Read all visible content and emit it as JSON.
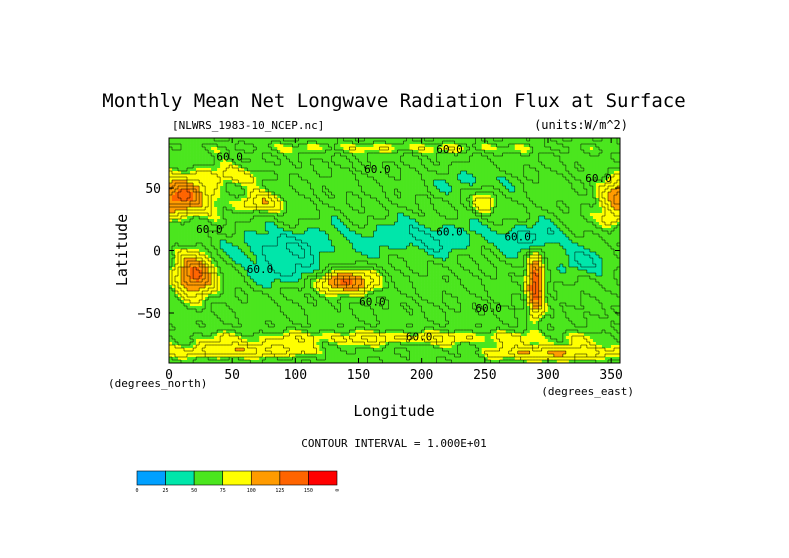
{
  "chart_data": {
    "type": "heatmap",
    "title": "Monthly Mean Net Longwave Radiation Flux at Surface",
    "file_label": "[NLWRS_1983-10_NCEP.nc]",
    "units_label": "(units:W/m^2)",
    "xlabel": "Longitude",
    "ylabel": "Latitude",
    "x_unit_label": "(degrees_east)",
    "y_unit_label": "(degrees_north)",
    "xlim": [
      0,
      357
    ],
    "ylim": [
      -90,
      90
    ],
    "x_ticks": [
      0,
      50,
      100,
      150,
      200,
      250,
      300,
      350
    ],
    "y_ticks": [
      -50,
      0,
      50
    ],
    "contour_interval_text": "CONTOUR INTERVAL = 1.000E+01",
    "contour_labels": [
      {
        "text": "60.0",
        "lon": 48,
        "lat": 72
      },
      {
        "text": "60.0",
        "lon": 165,
        "lat": 62
      },
      {
        "text": "60.0",
        "lon": 222,
        "lat": 78
      },
      {
        "text": "60.0",
        "lon": 340,
        "lat": 55
      },
      {
        "text": "60.0",
        "lon": 32,
        "lat": 14
      },
      {
        "text": "60.0",
        "lon": 222,
        "lat": 12
      },
      {
        "text": "60.0",
        "lon": 276,
        "lat": 8
      },
      {
        "text": "60.0",
        "lon": 72,
        "lat": -18
      },
      {
        "text": "60.0",
        "lon": 161,
        "lat": -44
      },
      {
        "text": "60.0",
        "lon": 253,
        "lat": -49
      },
      {
        "text": "60.0",
        "lon": 198,
        "lat": -72
      }
    ],
    "colorbar": {
      "bins": [
        {
          "label": "0",
          "color": "#00a0ff"
        },
        {
          "label": "25",
          "color": "#00e6aa"
        },
        {
          "label": "50",
          "color": "#4be61e"
        },
        {
          "label": "75",
          "color": "#ffff00"
        },
        {
          "label": "100",
          "color": "#ff9b00"
        },
        {
          "label": "125",
          "color": "#ff6400"
        },
        {
          "label": "150",
          "color": "#ff0000"
        }
      ],
      "end_label": "∞"
    },
    "field_anomalies": [
      {
        "lon": 10,
        "lat": 45,
        "rlon": 32,
        "rlat": 20,
        "amp": 30
      },
      {
        "lon": 8,
        "lat": 42,
        "rlon": 20,
        "rlat": 12,
        "amp": 40
      },
      {
        "lon": 20,
        "lat": -20,
        "rlon": 15,
        "rlat": 16,
        "amp": 75
      },
      {
        "lon": 138,
        "lat": -25,
        "rlon": 22,
        "rlat": 9,
        "amp": 70
      },
      {
        "lon": 290,
        "lat": -27,
        "rlon": 6,
        "rlat": 22,
        "amp": 85
      },
      {
        "lon": 75,
        "lat": 38,
        "rlon": 18,
        "rlat": 8,
        "amp": 35
      },
      {
        "lon": 250,
        "lat": 38,
        "rlon": 10,
        "rlat": 10,
        "amp": 28
      },
      {
        "lon": 350,
        "lat": 25,
        "rlon": 8,
        "rlat": 8,
        "amp": 22
      },
      {
        "lon": 55,
        "lat": 60,
        "rlon": 25,
        "rlat": 8,
        "amp": 20
      },
      {
        "lon": 90,
        "lat": 0,
        "rlon": 40,
        "rlat": 18,
        "amp": -28
      },
      {
        "lon": 200,
        "lat": 10,
        "rlon": 60,
        "rlat": 15,
        "amp": -22
      },
      {
        "lon": 290,
        "lat": 10,
        "rlon": 25,
        "rlat": 12,
        "amp": -25
      },
      {
        "lon": 330,
        "lat": -10,
        "rlon": 22,
        "rlat": 12,
        "amp": -22
      },
      {
        "lon": 100,
        "lat": -20,
        "rlon": 25,
        "rlat": 10,
        "amp": -18
      },
      {
        "lon": 240,
        "lat": 55,
        "rlon": 30,
        "rlat": 10,
        "amp": -15
      },
      {
        "lon": 180,
        "lat": -70,
        "rlon": 180,
        "rlat": 6,
        "amp": 22
      },
      {
        "lon": 60,
        "lat": -80,
        "rlon": 60,
        "rlat": 6,
        "amp": 35
      },
      {
        "lon": 300,
        "lat": -82,
        "rlon": 50,
        "rlat": 6,
        "amp": 40
      },
      {
        "lon": 180,
        "lat": 82,
        "rlon": 180,
        "rlat": 5,
        "amp": 15
      }
    ]
  }
}
